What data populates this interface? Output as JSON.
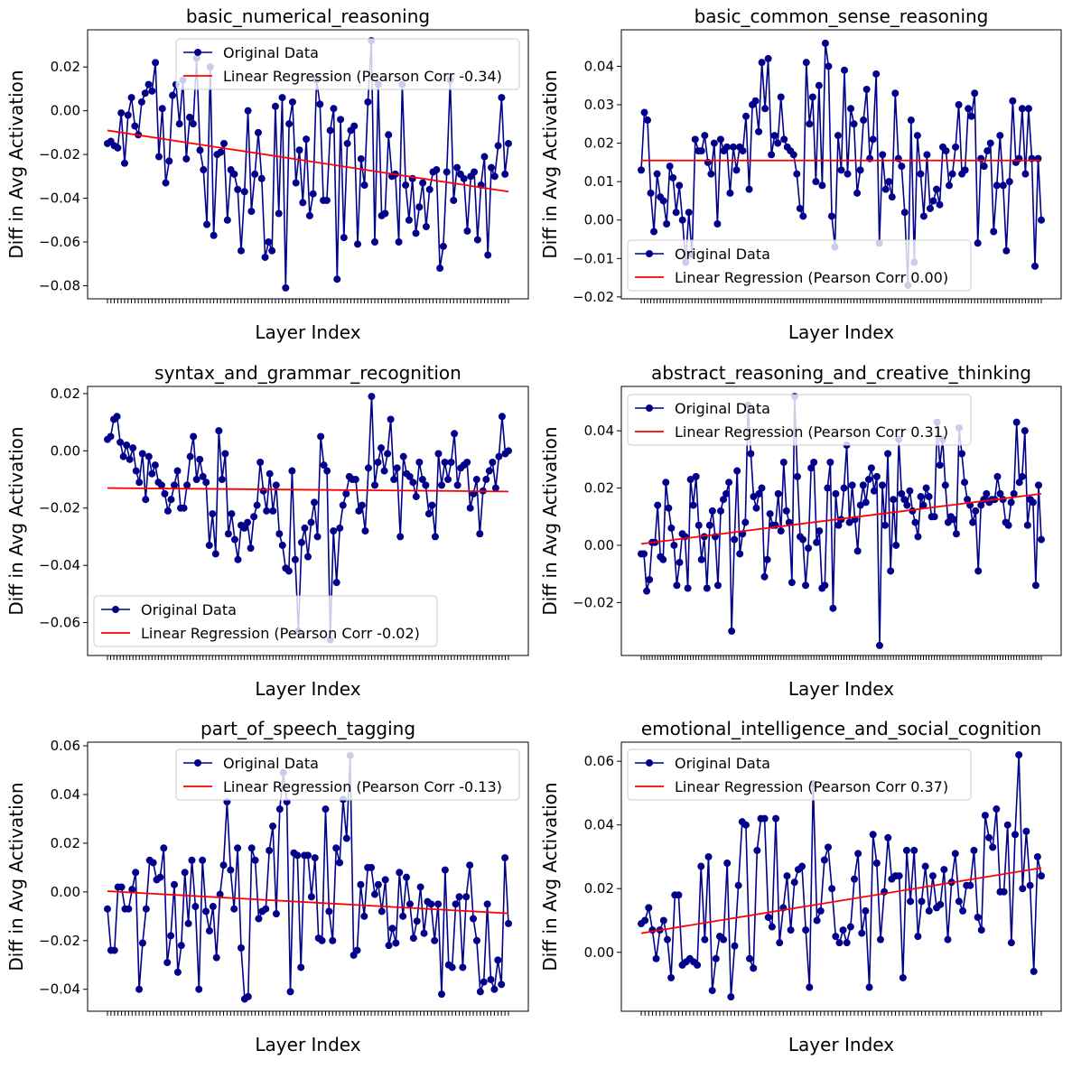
{
  "figure": {
    "background": "#ffffff"
  },
  "chart_data": [
    {
      "type": "line",
      "title": "basic_numerical_reasoning",
      "xlabel": "Layer Index",
      "ylabel": "Diff in Avg Activation",
      "ylim": [
        -0.086,
        0.037
      ],
      "yticks": [
        -0.08,
        -0.06,
        -0.04,
        -0.02,
        0.0,
        0.02
      ],
      "ytick_labels": [
        "−0.08",
        "−0.06",
        "−0.04",
        "−0.02",
        "0.00",
        "0.02"
      ],
      "legend": "top-center",
      "series": [
        {
          "name": "Original Data",
          "color": "#00008b",
          "marker": "circle",
          "values": [
            -0.015,
            -0.014,
            -0.016,
            -0.017,
            -0.001,
            -0.024,
            -0.002,
            0.006,
            -0.007,
            -0.011,
            0.004,
            0.008,
            0.012,
            0.009,
            0.022,
            -0.021,
            0.001,
            -0.033,
            -0.023,
            0.007,
            0.012,
            -0.006,
            0.014,
            -0.022,
            -0.003,
            -0.006,
            0.024,
            -0.018,
            -0.027,
            -0.052,
            0.02,
            -0.057,
            -0.02,
            -0.019,
            -0.015,
            -0.05,
            -0.027,
            -0.029,
            -0.036,
            -0.064,
            -0.037,
            0.0,
            -0.046,
            -0.029,
            -0.01,
            -0.031,
            -0.067,
            -0.06,
            -0.064,
            0.002,
            -0.047,
            0.006,
            -0.081,
            -0.006,
            0.004,
            -0.033,
            -0.018,
            -0.042,
            -0.013,
            -0.048,
            -0.038,
            0.014,
            0.003,
            -0.041,
            -0.041,
            -0.009,
            0.001,
            -0.077,
            -0.004,
            -0.058,
            -0.015,
            -0.009,
            -0.007,
            -0.061,
            -0.022,
            -0.034,
            0.004,
            0.032,
            -0.06,
            0.012,
            -0.048,
            -0.047,
            -0.011,
            -0.03,
            -0.029,
            -0.06,
            0.012,
            -0.034,
            -0.05,
            -0.031,
            -0.056,
            -0.044,
            -0.033,
            -0.053,
            -0.036,
            -0.028,
            -0.027,
            -0.072,
            -0.062,
            -0.028,
            0.014,
            -0.041,
            -0.026,
            -0.029,
            -0.031,
            -0.055,
            -0.03,
            -0.028,
            -0.059,
            -0.034,
            -0.021,
            -0.066,
            -0.026,
            -0.03,
            -0.016,
            0.006,
            -0.029,
            -0.015
          ]
        },
        {
          "name": "Linear Regression (Pearson Corr -0.34)",
          "color": "#ff0000",
          "values": [
            -0.009,
            -0.037
          ]
        }
      ]
    },
    {
      "type": "line",
      "title": "basic_common_sense_reasoning",
      "xlabel": "Layer Index",
      "ylabel": "Diff in Avg Activation",
      "ylim": [
        -0.0205,
        0.0495
      ],
      "yticks": [
        -0.02,
        -0.01,
        0.0,
        0.01,
        0.02,
        0.03,
        0.04
      ],
      "ytick_labels": [
        "−0.02",
        "−0.01",
        "0.00",
        "0.01",
        "0.02",
        "0.03",
        "0.04"
      ],
      "legend": "lower-left",
      "series": [
        {
          "name": "Original Data",
          "color": "#00008b",
          "marker": "circle",
          "values": [
            0.013,
            0.028,
            0.026,
            0.007,
            -0.003,
            0.012,
            0.006,
            0.005,
            -0.001,
            0.014,
            0.011,
            0.002,
            0.009,
            0.0,
            -0.011,
            0.002,
            -0.009,
            0.021,
            0.018,
            0.018,
            0.022,
            0.015,
            0.012,
            0.02,
            -0.001,
            0.021,
            0.018,
            0.019,
            0.007,
            0.019,
            0.013,
            0.019,
            0.018,
            0.027,
            0.008,
            0.03,
            0.031,
            0.023,
            0.041,
            0.029,
            0.042,
            0.017,
            0.022,
            0.02,
            0.032,
            0.021,
            0.019,
            0.018,
            0.017,
            0.012,
            0.003,
            0.001,
            0.041,
            0.025,
            0.032,
            0.01,
            0.035,
            0.009,
            0.046,
            0.04,
            0.001,
            -0.007,
            0.022,
            0.013,
            0.039,
            0.012,
            0.029,
            0.025,
            0.007,
            0.013,
            0.026,
            0.034,
            0.016,
            0.021,
            0.038,
            -0.006,
            0.017,
            0.008,
            0.01,
            0.006,
            0.033,
            0.016,
            0.014,
            0.002,
            -0.017,
            0.026,
            -0.011,
            0.022,
            0.012,
            0.001,
            0.017,
            0.003,
            0.005,
            0.008,
            0.004,
            0.019,
            0.018,
            0.009,
            0.012,
            0.019,
            0.03,
            0.012,
            0.013,
            0.029,
            0.027,
            0.033,
            -0.006,
            0.016,
            0.014,
            0.018,
            0.02,
            -0.003,
            0.009,
            0.022,
            0.009,
            -0.008,
            0.01,
            0.031,
            0.015,
            0.016,
            0.029,
            0.012,
            0.029,
            0.016,
            -0.012,
            0.016,
            0.0
          ]
        },
        {
          "name": "Linear Regression (Pearson Corr 0.00)",
          "color": "#ff0000",
          "values": [
            0.0155,
            0.0155
          ]
        }
      ]
    },
    {
      "type": "line",
      "title": "syntax_and_grammar_recognition",
      "xlabel": "Layer Index",
      "ylabel": "Diff in Avg Activation",
      "ylim": [
        -0.0715,
        0.0225
      ],
      "yticks": [
        -0.06,
        -0.04,
        -0.02,
        0.0,
        0.02
      ],
      "ytick_labels": [
        "−0.06",
        "−0.04",
        "−0.02",
        "0.00",
        "0.02"
      ],
      "legend": "lower-left",
      "series": [
        {
          "name": "Original Data",
          "color": "#00008b",
          "marker": "circle",
          "values": [
            0.004,
            0.005,
            0.011,
            0.012,
            0.003,
            -0.002,
            0.002,
            -0.003,
            0.001,
            -0.007,
            -0.011,
            -0.001,
            -0.017,
            -0.002,
            -0.008,
            -0.005,
            -0.011,
            -0.012,
            -0.015,
            -0.021,
            -0.017,
            -0.012,
            -0.007,
            -0.02,
            -0.02,
            -0.012,
            -0.002,
            0.005,
            -0.01,
            -0.003,
            -0.009,
            -0.011,
            -0.033,
            -0.022,
            -0.036,
            0.007,
            -0.01,
            -0.001,
            -0.029,
            -0.022,
            -0.031,
            -0.038,
            -0.026,
            -0.027,
            -0.025,
            -0.034,
            -0.023,
            -0.019,
            -0.004,
            -0.014,
            -0.021,
            -0.008,
            -0.021,
            -0.012,
            -0.029,
            -0.033,
            -0.041,
            -0.042,
            -0.007,
            -0.038,
            -0.063,
            -0.032,
            -0.027,
            -0.037,
            -0.025,
            -0.018,
            -0.03,
            0.005,
            -0.005,
            -0.007,
            -0.066,
            -0.028,
            -0.046,
            -0.027,
            -0.019,
            -0.015,
            -0.009,
            -0.01,
            -0.01,
            -0.021,
            -0.019,
            -0.028,
            -0.006,
            0.019,
            -0.012,
            -0.004,
            0.001,
            -0.007,
            -0.001,
            0.011,
            -0.01,
            -0.006,
            -0.03,
            -0.002,
            -0.008,
            -0.009,
            -0.011,
            -0.016,
            -0.004,
            -0.01,
            -0.012,
            -0.022,
            -0.019,
            -0.03,
            -0.001,
            -0.012,
            -0.004,
            -0.01,
            -0.004,
            0.006,
            -0.012,
            -0.006,
            -0.005,
            -0.004,
            -0.02,
            -0.015,
            -0.01,
            -0.029,
            -0.014,
            -0.01,
            -0.007,
            -0.004,
            -0.013,
            -0.002,
            0.012,
            -0.001,
            0.0
          ]
        },
        {
          "name": "Linear Regression (Pearson Corr -0.02)",
          "color": "#ff0000",
          "values": [
            -0.013,
            -0.0142
          ]
        }
      ]
    },
    {
      "type": "line",
      "title": "abstract_reasoning_and_creative_thinking",
      "xlabel": "Layer Index",
      "ylabel": "Diff in Avg Activation",
      "ylim": [
        -0.0385,
        0.0555
      ],
      "yticks": [
        -0.02,
        0.0,
        0.02,
        0.04
      ],
      "ytick_labels": [
        "−0.02",
        "0.00",
        "0.02",
        "0.04"
      ],
      "legend": "top-left",
      "series": [
        {
          "name": "Original Data",
          "color": "#00008b",
          "marker": "circle",
          "values": [
            -0.003,
            -0.003,
            -0.016,
            -0.012,
            0.001,
            0.001,
            0.014,
            -0.004,
            -0.005,
            0.022,
            0.013,
            0.006,
            0.0,
            -0.014,
            -0.006,
            0.004,
            0.003,
            -0.015,
            0.023,
            0.014,
            0.024,
            0.007,
            -0.005,
            0.003,
            -0.015,
            0.007,
            0.012,
            0.003,
            -0.014,
            0.012,
            0.016,
            0.018,
            0.022,
            -0.03,
            0.002,
            0.026,
            -0.003,
            0.004,
            0.008,
            0.049,
            0.032,
            0.017,
            0.013,
            0.018,
            0.02,
            -0.011,
            -0.005,
            0.011,
            0.007,
            0.007,
            0.018,
            0.005,
            0.029,
            0.012,
            0.008,
            -0.013,
            0.052,
            0.024,
            0.003,
            0.002,
            -0.014,
            -0.001,
            0.027,
            0.029,
            0.001,
            0.005,
            -0.015,
            -0.014,
            0.02,
            0.029,
            -0.022,
            0.018,
            0.007,
            0.009,
            0.02,
            0.035,
            0.008,
            0.021,
            0.009,
            -0.002,
            0.014,
            0.021,
            0.015,
            0.023,
            0.027,
            0.019,
            0.024,
            -0.035,
            0.021,
            0.007,
            0.032,
            -0.009,
            0.016,
            0.0,
            0.037,
            0.018,
            0.016,
            0.014,
            0.019,
            0.012,
            0.008,
            0.003,
            0.017,
            0.014,
            0.02,
            0.017,
            0.01,
            0.01,
            0.043,
            0.028,
            0.037,
            0.021,
            0.008,
            0.01,
            0.009,
            0.004,
            0.041,
            0.032,
            0.022,
            0.016,
            0.014,
            0.008,
            0.012,
            -0.009,
            0.014,
            0.016,
            0.018,
            0.015,
            0.016,
            0.016,
            0.024,
            0.018,
            0.016,
            0.008,
            0.007,
            0.015,
            0.018,
            0.043,
            0.022,
            0.024,
            0.04,
            0.007,
            0.016,
            0.015,
            -0.014,
            0.021,
            0.002
          ]
        },
        {
          "name": "Linear Regression (Pearson Corr 0.31)",
          "color": "#ff0000",
          "values": [
            0.0005,
            0.018
          ]
        }
      ]
    },
    {
      "type": "line",
      "title": "part_of_speech_tagging",
      "xlabel": "Layer Index",
      "ylabel": "Diff in Avg Activation",
      "ylim": [
        -0.049,
        0.0615
      ],
      "yticks": [
        -0.04,
        -0.02,
        0.0,
        0.02,
        0.04,
        0.06
      ],
      "ytick_labels": [
        "−0.04",
        "−0.02",
        "0.00",
        "0.02",
        "0.04",
        "0.06"
      ],
      "legend": "top-center",
      "series": [
        {
          "name": "Original Data",
          "color": "#00008b",
          "marker": "circle",
          "values": [
            -0.007,
            -0.024,
            -0.024,
            0.002,
            0.002,
            -0.007,
            -0.007,
            0.001,
            0.008,
            -0.04,
            -0.021,
            -0.007,
            0.013,
            0.012,
            0.005,
            0.006,
            0.018,
            -0.029,
            -0.018,
            0.003,
            -0.033,
            -0.022,
            0.008,
            -0.013,
            0.013,
            -0.006,
            -0.04,
            0.013,
            -0.008,
            -0.016,
            -0.006,
            -0.027,
            -0.001,
            0.011,
            0.037,
            0.009,
            -0.007,
            0.018,
            -0.023,
            -0.044,
            -0.043,
            0.018,
            0.013,
            -0.011,
            -0.008,
            -0.007,
            0.017,
            0.027,
            -0.009,
            0.034,
            0.049,
            0.037,
            -0.041,
            0.016,
            0.015,
            -0.031,
            0.015,
            0.015,
            -0.002,
            0.014,
            -0.019,
            -0.02,
            0.034,
            -0.008,
            -0.02,
            0.018,
            0.012,
            0.038,
            0.022,
            0.056,
            -0.026,
            -0.024,
            0.003,
            -0.01,
            0.01,
            0.01,
            -0.001,
            0.003,
            -0.008,
            0.005,
            -0.022,
            -0.015,
            -0.021,
            0.008,
            -0.01,
            0.006,
            -0.005,
            -0.019,
            -0.012,
            0.002,
            -0.017,
            -0.004,
            -0.005,
            -0.02,
            -0.005,
            -0.042,
            0.009,
            -0.03,
            -0.031,
            -0.005,
            -0.002,
            -0.031,
            -0.002,
            0.011,
            -0.011,
            -0.02,
            -0.041,
            -0.037,
            -0.005,
            -0.036,
            -0.04,
            -0.028,
            -0.038,
            0.014,
            -0.013
          ]
        },
        {
          "name": "Linear Regression (Pearson Corr -0.13)",
          "color": "#ff0000",
          "values": [
            0.0003,
            -0.0088
          ]
        }
      ]
    },
    {
      "type": "line",
      "title": "emotional_intelligence_and_social_cognition",
      "xlabel": "Layer Index",
      "ylabel": "Diff in Avg Activation",
      "ylim": [
        -0.0185,
        0.066
      ],
      "yticks": [
        0.0,
        0.02,
        0.04,
        0.06
      ],
      "ytick_labels": [
        "0.00",
        "0.02",
        "0.04",
        "0.06"
      ],
      "legend": "top-left",
      "series": [
        {
          "name": "Original Data",
          "color": "#00008b",
          "marker": "circle",
          "values": [
            0.009,
            0.01,
            0.014,
            0.007,
            -0.002,
            0.007,
            0.01,
            0.004,
            -0.008,
            0.018,
            0.018,
            -0.004,
            -0.003,
            -0.002,
            -0.003,
            -0.004,
            0.027,
            0.004,
            0.03,
            -0.012,
            -0.002,
            0.005,
            0.004,
            0.028,
            -0.014,
            0.002,
            0.021,
            0.041,
            0.04,
            -0.002,
            -0.005,
            0.032,
            0.042,
            0.042,
            0.011,
            0.008,
            0.042,
            0.003,
            0.014,
            0.024,
            0.007,
            0.022,
            0.026,
            0.027,
            0.007,
            -0.011,
            0.053,
            0.01,
            0.013,
            0.029,
            0.033,
            0.02,
            0.005,
            0.003,
            0.007,
            0.003,
            0.008,
            0.023,
            0.031,
            0.006,
            0.013,
            -0.011,
            0.037,
            0.028,
            0.004,
            0.019,
            0.036,
            0.023,
            0.024,
            0.024,
            -0.008,
            0.032,
            0.016,
            0.032,
            0.005,
            0.016,
            0.027,
            0.013,
            0.024,
            0.014,
            0.015,
            0.026,
            0.004,
            0.022,
            0.031,
            0.016,
            0.013,
            0.021,
            0.021,
            0.032,
            0.011,
            0.007,
            0.043,
            0.036,
            0.033,
            0.045,
            0.019,
            0.019,
            0.04,
            0.003,
            0.037,
            0.062,
            0.02,
            0.038,
            0.021,
            -0.006,
            0.03,
            0.024
          ]
        },
        {
          "name": "Linear Regression (Pearson Corr 0.37)",
          "color": "#ff0000",
          "values": [
            0.006,
            0.0265
          ]
        }
      ]
    }
  ]
}
